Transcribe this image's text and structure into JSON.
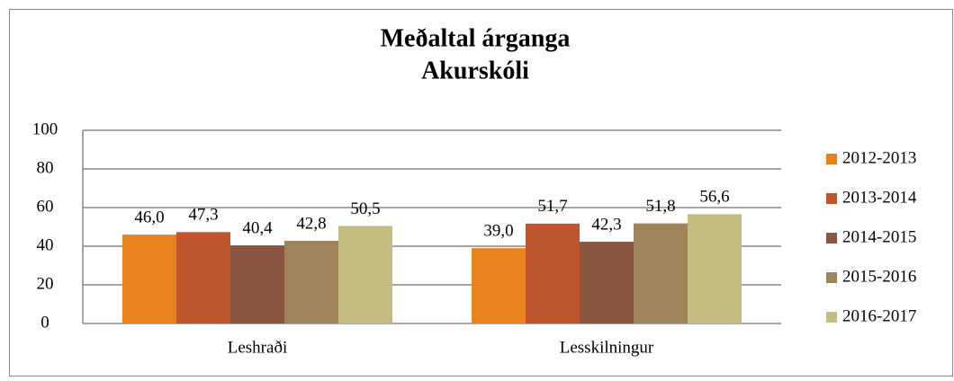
{
  "chart_data": {
    "type": "bar",
    "title": "Meðaltal árganga",
    "subtitle": "Akurskóli",
    "categories": [
      "Leshraði",
      "Lesskilningur"
    ],
    "series": [
      {
        "name": "2012-2013",
        "color": "#e8821a",
        "values": [
          46.0,
          39.0
        ],
        "value_labels": [
          "46,0",
          "39,0"
        ]
      },
      {
        "name": "2013-2014",
        "color": "#c0562d",
        "values": [
          47.3,
          51.7
        ],
        "value_labels": [
          "47,3",
          "51,7"
        ]
      },
      {
        "name": "2014-2015",
        "color": "#8a5640",
        "values": [
          40.4,
          42.3
        ],
        "value_labels": [
          "40,4",
          "42,3"
        ]
      },
      {
        "name": "2015-2016",
        "color": "#9e8458",
        "values": [
          42.8,
          51.8
        ],
        "value_labels": [
          "42,8",
          "51,8"
        ]
      },
      {
        "name": "2016-2017",
        "color": "#c4bc80",
        "values": [
          50.5,
          56.6
        ],
        "value_labels": [
          "50,5",
          "56,6"
        ]
      }
    ],
    "ylim": [
      0,
      100
    ],
    "yticks": [
      0,
      20,
      40,
      60,
      80,
      100
    ],
    "grid": true,
    "legend": "right"
  }
}
